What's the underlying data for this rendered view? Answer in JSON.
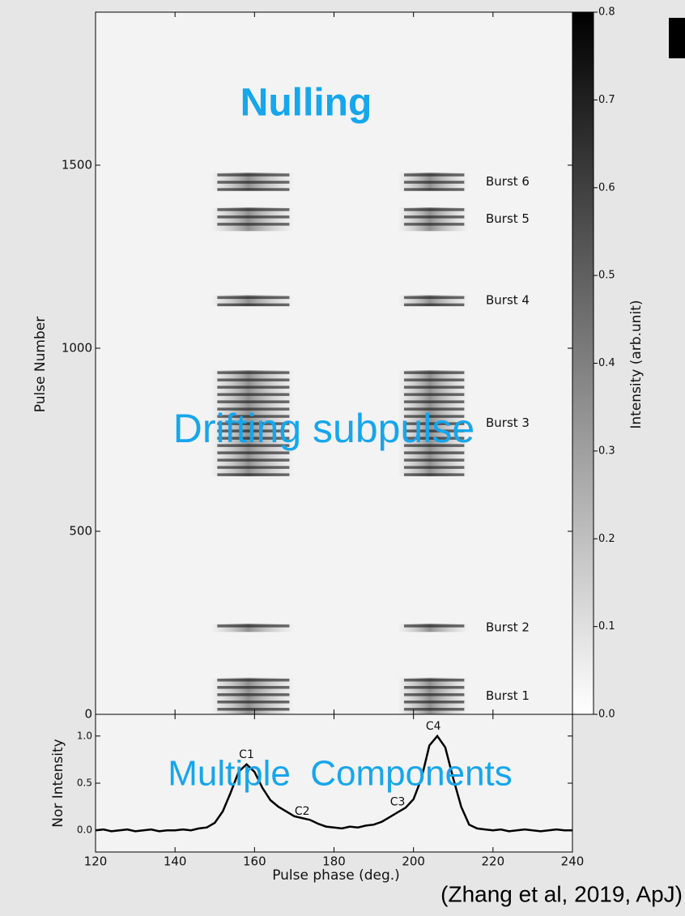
{
  "chart_data": [
    {
      "type": "heatmap",
      "ylabel": "Pulse Number",
      "xlim": [
        120,
        240
      ],
      "ylim": [
        0,
        1918
      ],
      "yticks": [
        0,
        500,
        1000,
        1500
      ],
      "xticks": [
        120,
        140,
        160,
        180,
        200,
        220,
        240
      ],
      "component_windows": [
        [
          149,
          170
        ],
        [
          196,
          214
        ]
      ],
      "bursts": [
        {
          "label": "Burst 1",
          "start": 0,
          "end": 100
        },
        {
          "label": "Burst 2",
          "start": 225,
          "end": 248
        },
        {
          "label": "Burst 3",
          "start": 650,
          "end": 940
        },
        {
          "label": "Burst 4",
          "start": 1115,
          "end": 1145
        },
        {
          "label": "Burst 5",
          "start": 1320,
          "end": 1385
        },
        {
          "label": "Burst 6",
          "start": 1430,
          "end": 1480
        }
      ],
      "clim": [
        0,
        0.8
      ],
      "colorbar_label": "Intensity (arb.unit)",
      "cticks": [
        {
          "value": 0,
          "label": "0.0"
        },
        0.1,
        0.2,
        0.3,
        0.4,
        0.5,
        0.6,
        0.7,
        0.8
      ]
    },
    {
      "type": "line",
      "xlabel": "Pulse phase (deg.)",
      "ylabel": "Nor Intensity",
      "color": "#000000",
      "xlim": [
        120,
        240
      ],
      "ylim": [
        -0.23,
        1.23
      ],
      "xticks": [
        120,
        140,
        160,
        180,
        200,
        220,
        240
      ],
      "yticks": [
        {
          "value": 0,
          "label": "0.0"
        },
        0.5,
        {
          "value": 1,
          "label": "1.0"
        }
      ],
      "x": [
        120,
        122,
        124,
        126,
        128,
        130,
        132,
        134,
        136,
        138,
        140,
        142,
        144,
        146,
        148,
        150,
        152,
        154,
        156,
        158,
        160,
        162,
        164,
        166,
        168,
        170,
        172,
        174,
        176,
        178,
        180,
        182,
        184,
        186,
        188,
        190,
        192,
        194,
        196,
        198,
        200,
        202,
        204,
        206,
        208,
        210,
        212,
        214,
        216,
        218,
        220,
        222,
        224,
        226,
        228,
        230,
        232,
        234,
        236,
        238,
        240
      ],
      "values": [
        0.0,
        0.01,
        -0.01,
        0.0,
        0.01,
        -0.01,
        0.0,
        0.01,
        -0.01,
        0.0,
        0.0,
        0.01,
        0.0,
        0.02,
        0.03,
        0.08,
        0.2,
        0.4,
        0.62,
        0.7,
        0.62,
        0.45,
        0.32,
        0.25,
        0.2,
        0.15,
        0.13,
        0.11,
        0.07,
        0.04,
        0.03,
        0.02,
        0.04,
        0.03,
        0.05,
        0.06,
        0.09,
        0.14,
        0.19,
        0.24,
        0.33,
        0.55,
        0.9,
        1.0,
        0.88,
        0.55,
        0.25,
        0.06,
        0.02,
        0.01,
        0.0,
        0.01,
        -0.01,
        0.0,
        0.01,
        0.0,
        -0.01,
        0.0,
        0.01,
        0.0,
        0.0
      ],
      "annotations": [
        {
          "text": "C1",
          "x": 158,
          "y": 0.8
        },
        {
          "text": "C2",
          "x": 172,
          "y": 0.2
        },
        {
          "text": "C3",
          "x": 196,
          "y": 0.3
        },
        {
          "text": "C4",
          "x": 205,
          "y": 1.1
        }
      ]
    }
  ],
  "overlays": [
    "Nulling",
    "Drifting subpulse",
    "Multiple  Components"
  ],
  "citation": "(Zhang et al, 2019, ApJ)"
}
